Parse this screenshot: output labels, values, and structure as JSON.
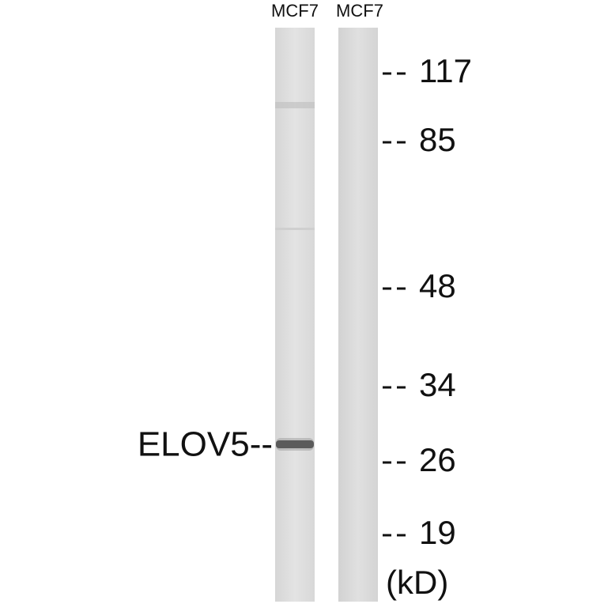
{
  "lanes": [
    {
      "label": "MCF7"
    },
    {
      "label": "MCF7"
    }
  ],
  "markers": [
    117,
    85,
    48,
    34,
    26,
    19
  ],
  "unit": "(kD)",
  "band": {
    "label": "ELOV5--"
  }
}
